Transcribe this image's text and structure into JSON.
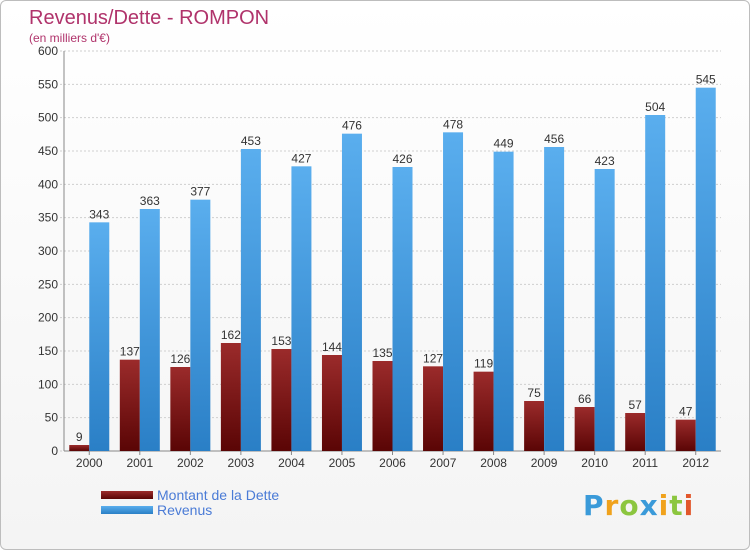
{
  "header": {
    "title": "Revenus/Dette - ROMPON",
    "subtitle": "(en milliers d'€)"
  },
  "chart_data": {
    "type": "bar",
    "categories": [
      "2000",
      "2001",
      "2002",
      "2003",
      "2004",
      "2005",
      "2006",
      "2007",
      "2008",
      "2009",
      "2010",
      "2011",
      "2012"
    ],
    "series": [
      {
        "name": "Montant de la Dette",
        "color": "#7a0e0e",
        "values": [
          9,
          137,
          126,
          162,
          153,
          144,
          135,
          127,
          119,
          75,
          66,
          57,
          47
        ]
      },
      {
        "name": "Revenus",
        "color": "#3f97e0",
        "values": [
          343,
          363,
          377,
          453,
          427,
          476,
          426,
          478,
          449,
          456,
          423,
          504,
          545
        ]
      }
    ],
    "ylim": [
      0,
      600
    ],
    "yticks": [
      0,
      50,
      100,
      150,
      200,
      250,
      300,
      350,
      400,
      450,
      500,
      550,
      600
    ],
    "grid": true,
    "legend_position": "bottom-left"
  },
  "logo": {
    "letters": [
      {
        "ch": "P",
        "color": "#3a9ad9"
      },
      {
        "ch": "r",
        "color": "#f0a21c"
      },
      {
        "ch": "o",
        "color": "#8cc63f"
      },
      {
        "ch": "x",
        "color": "#3a9ad9"
      },
      {
        "ch": "i",
        "color": "#f0a21c"
      },
      {
        "ch": "t",
        "color": "#8cc63f"
      },
      {
        "ch": "i",
        "color": "#e2572b"
      }
    ]
  }
}
